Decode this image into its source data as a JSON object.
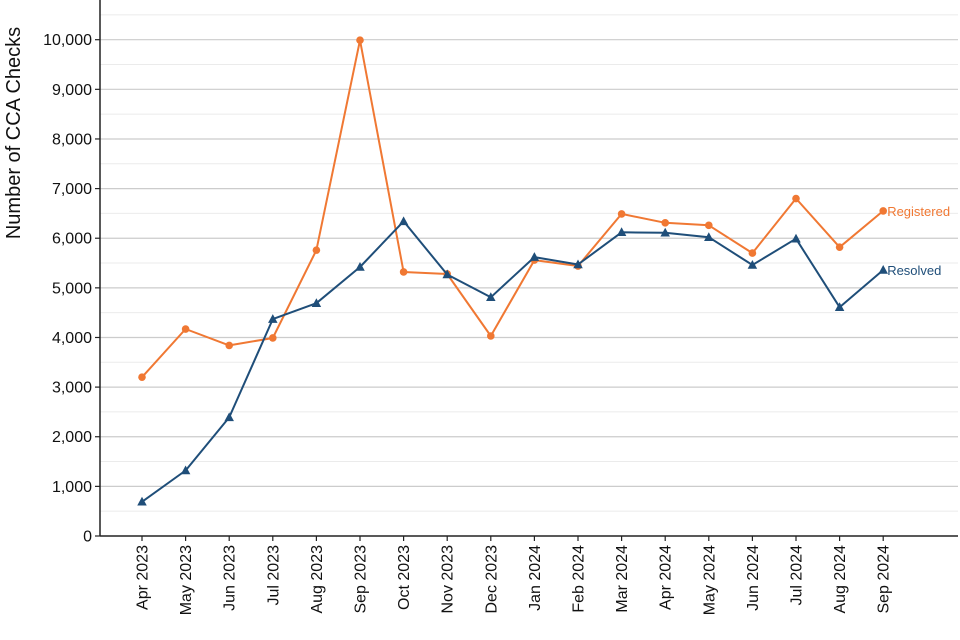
{
  "chart_data": {
    "type": "line",
    "title": "",
    "xlabel": "",
    "ylabel": "Number of CCA Checks",
    "ylim": [
      0,
      10800
    ],
    "yticks": [
      0,
      1000,
      2000,
      3000,
      4000,
      5000,
      6000,
      7000,
      8000,
      9000,
      10000
    ],
    "ytick_labels": [
      "0",
      "1,000",
      "2,000",
      "3,000",
      "4,000",
      "5,000",
      "6,000",
      "7,000",
      "8,000",
      "9,000",
      "10,000"
    ],
    "grid": true,
    "legend": "inline-right",
    "categories": [
      "Apr 2023",
      "May 2023",
      "Jun 2023",
      "Jul 2023",
      "Aug 2023",
      "Sep 2023",
      "Oct 2023",
      "Nov 2023",
      "Dec 2023",
      "Jan 2024",
      "Feb 2024",
      "Mar 2024",
      "Apr 2024",
      "May 2024",
      "Jun 2024",
      "Jul 2024",
      "Aug 2024",
      "Sep 2024"
    ],
    "series": [
      {
        "name": "Registered",
        "color": "#f07833",
        "marker": "circle",
        "values": [
          3200,
          4170,
          3840,
          3990,
          5760,
          9990,
          5320,
          5280,
          4030,
          5560,
          5440,
          6490,
          6310,
          6260,
          5700,
          6800,
          5820,
          6550
        ]
      },
      {
        "name": "Resolved",
        "color": "#1f4e79",
        "marker": "triangle",
        "values": [
          690,
          1320,
          2390,
          4370,
          4690,
          5420,
          6340,
          5270,
          4810,
          5620,
          5470,
          6120,
          6110,
          6020,
          5460,
          5990,
          4610,
          5360
        ]
      }
    ]
  }
}
